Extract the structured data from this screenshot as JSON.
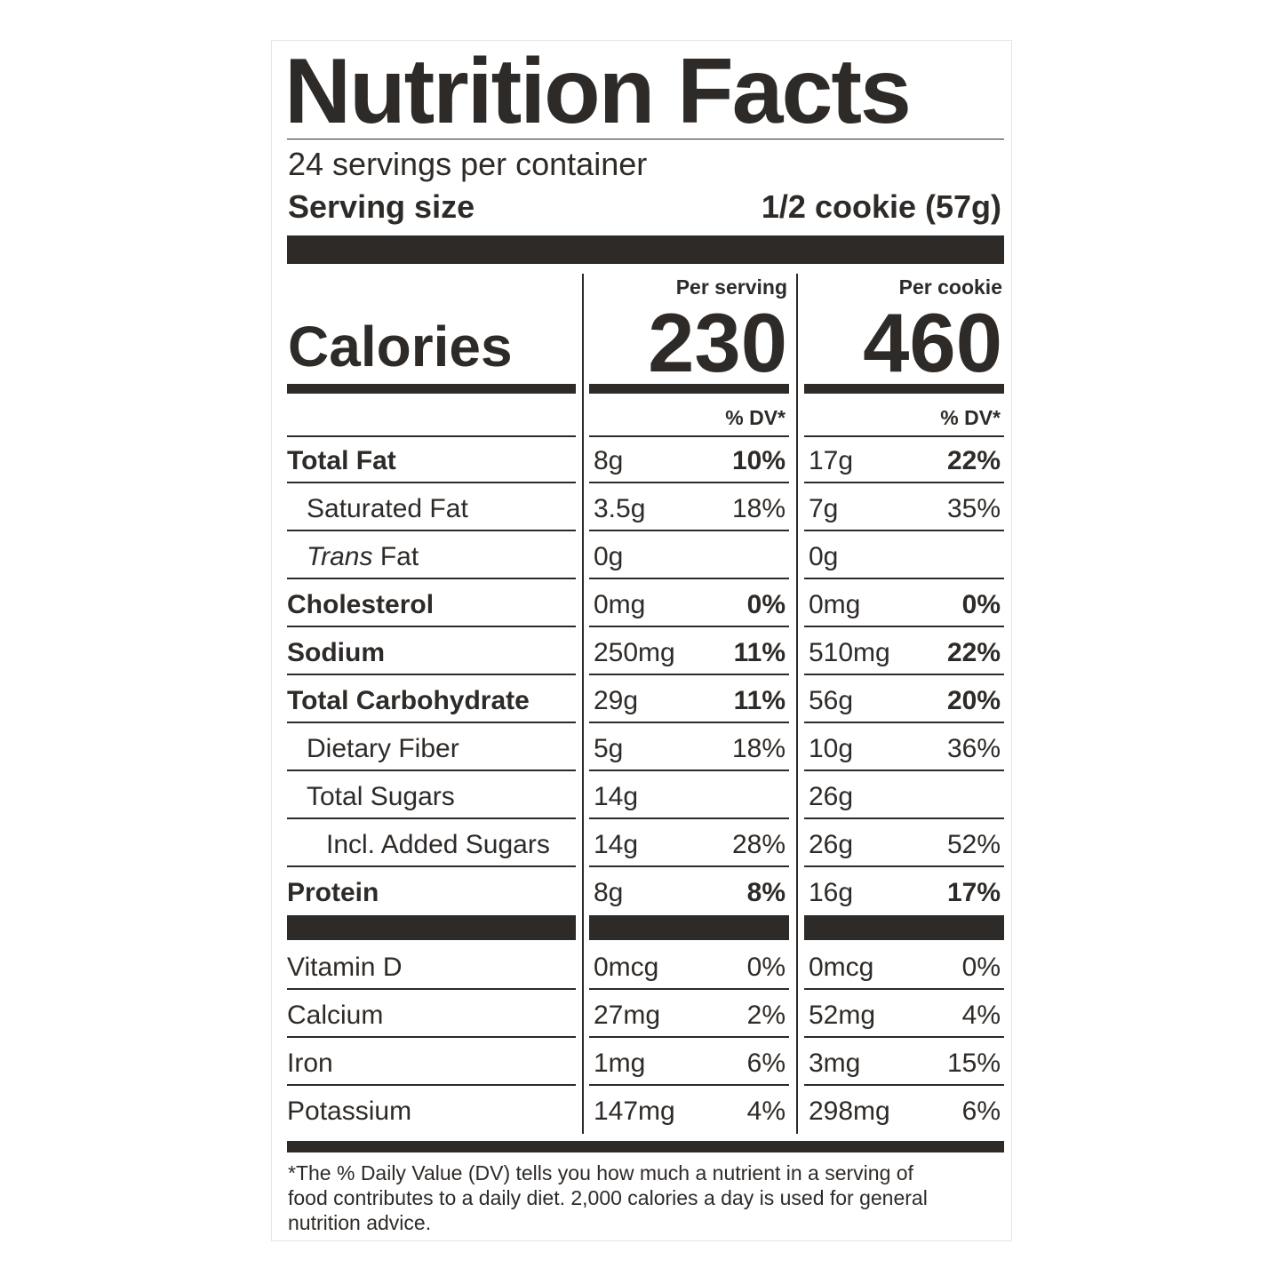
{
  "header": {
    "title": "Nutrition Facts",
    "servings": "24 servings per container",
    "serving_size_label": "Serving size",
    "serving_size": "1/2 cookie (57g)"
  },
  "calories_label": "Calories",
  "columns": [
    {
      "heading": "Per serving",
      "calories": "230",
      "dv_heading": "% DV*"
    },
    {
      "heading": "Per cookie",
      "calories": "460",
      "dv_heading": "% DV*"
    }
  ],
  "nutrients": [
    {
      "name": "Total Fat",
      "serving": [
        "8g",
        "10%"
      ],
      "cookie": [
        "17g",
        "22%"
      ]
    },
    {
      "name": "Saturated Fat",
      "serving": [
        "3.5g",
        "18%"
      ],
      "cookie": [
        "7g",
        "35%"
      ]
    },
    {
      "name_italic": "Trans",
      "name": "Fat",
      "serving": [
        "0g"
      ],
      "cookie": [
        "0g"
      ]
    },
    {
      "name": "Cholesterol",
      "serving": [
        "0mg",
        "0%"
      ],
      "cookie": [
        "0mg",
        "0%"
      ]
    },
    {
      "name": "Sodium",
      "serving": [
        "250mg",
        "11%"
      ],
      "cookie": [
        "510mg",
        "22%"
      ]
    },
    {
      "name": "Total Carbohydrate",
      "serving": [
        "29g",
        "11%"
      ],
      "cookie": [
        "56g",
        "20%"
      ]
    },
    {
      "name": "Dietary Fiber",
      "serving": [
        "5g",
        "18%"
      ],
      "cookie": [
        "10g",
        "36%"
      ]
    },
    {
      "name": "Total Sugars",
      "serving": [
        "14g"
      ],
      "cookie": [
        "26g"
      ]
    },
    {
      "name": "Incl. Added Sugars",
      "serving": [
        "14g",
        "28%"
      ],
      "cookie": [
        "26g",
        "52%"
      ]
    },
    {
      "name": "Protein",
      "serving": [
        "8g",
        "8%"
      ],
      "cookie": [
        "16g",
        "17%"
      ]
    }
  ],
  "vitamins": [
    {
      "name": "Vitamin D",
      "serving": [
        "0mcg",
        "0%"
      ],
      "cookie": [
        "0mcg",
        "0%"
      ]
    },
    {
      "name": "Calcium",
      "serving": [
        "27mg",
        "2%"
      ],
      "cookie": [
        "52mg",
        "4%"
      ]
    },
    {
      "name": "Iron",
      "serving": [
        "1mg",
        "6%"
      ],
      "cookie": [
        "3mg",
        "15%"
      ]
    },
    {
      "name": "Potassium",
      "serving": [
        "147mg",
        "4%"
      ],
      "cookie": [
        "298mg",
        "6%"
      ]
    }
  ],
  "footnote": [
    "*The % Daily Value (DV) tells you how much a nutrient in a serving of",
    "food contributes to a daily diet. 2,000 calories a day is used for general",
    "nutrition advice."
  ]
}
